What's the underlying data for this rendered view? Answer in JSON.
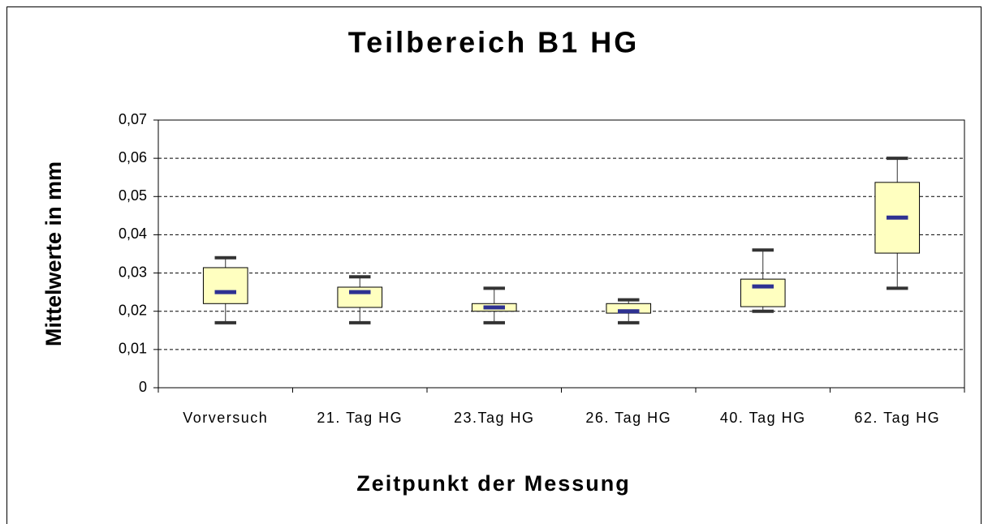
{
  "chart_data": {
    "type": "box",
    "title": "Teilbereich B1 HG",
    "xlabel": "Zeitpunkt der Messung",
    "ylabel": "Mittelwerte in mm",
    "categories": [
      "Vorversuch",
      "21. Tag HG",
      "23.Tag HG",
      "26. Tag HG",
      "40. Tag HG",
      "62. Tag HG"
    ],
    "min": [
      0.017,
      0.017,
      0.017,
      0.017,
      0.02,
      0.026
    ],
    "q1": [
      0.022,
      0.021,
      0.02,
      0.0195,
      0.0212,
      0.0352
    ],
    "median": [
      0.025,
      0.025,
      0.021,
      0.02,
      0.0265,
      0.0445
    ],
    "q3": [
      0.0314,
      0.0263,
      0.022,
      0.022,
      0.0284,
      0.0537
    ],
    "max": [
      0.034,
      0.029,
      0.026,
      0.023,
      0.036,
      0.06
    ],
    "box_color": "#ffffc0",
    "median_color": "#2e3192",
    "whisker_color": "#333333",
    "ylim": [
      0,
      0.07
    ],
    "yticks": [
      0,
      {
        "value": 0.01,
        "label": "0,01"
      },
      {
        "value": 0.02,
        "label": "0,02"
      },
      {
        "value": 0.03,
        "label": "0,03"
      },
      {
        "value": 0.04,
        "label": "0,04"
      },
      {
        "value": 0.05,
        "label": "0,05"
      },
      {
        "value": 0.06,
        "label": "0,06"
      },
      {
        "value": 0.07,
        "label": "0,07"
      }
    ],
    "grid": true
  }
}
